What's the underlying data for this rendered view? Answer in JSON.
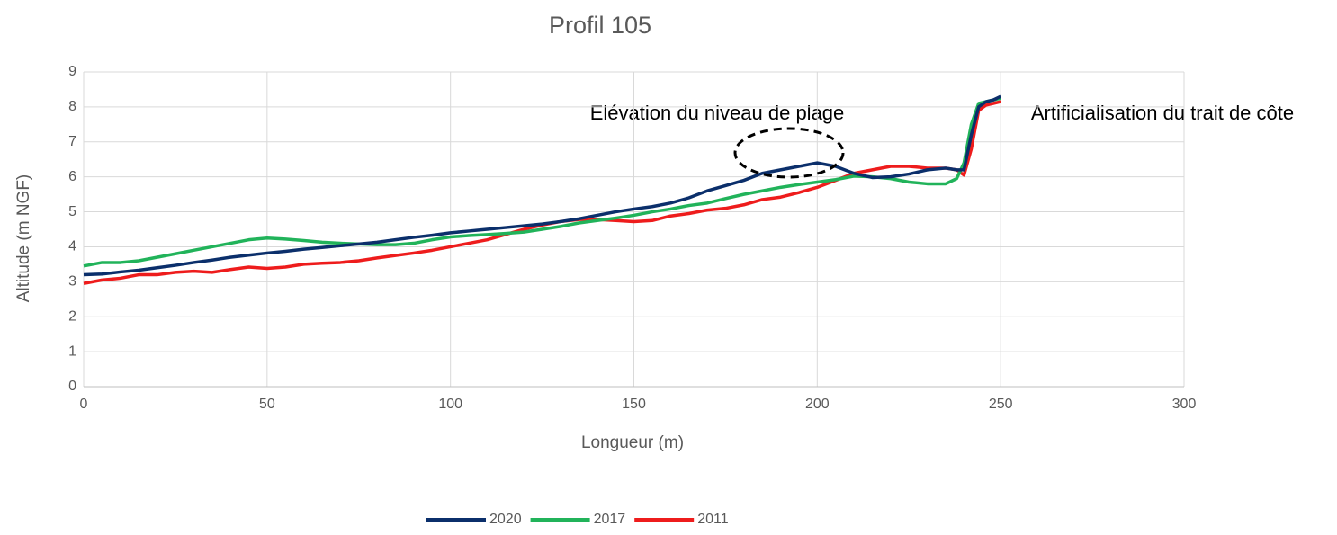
{
  "chart_data": {
    "type": "line",
    "title": "Profil 105",
    "xlabel": "Longueur (m)",
    "ylabel": "Altitude (m NGF)",
    "annotations": [
      "Elévation du niveau de plage",
      "Artificialisation du trait de côte"
    ],
    "x": [
      0,
      5,
      10,
      15,
      20,
      25,
      30,
      35,
      40,
      45,
      50,
      55,
      60,
      65,
      70,
      75,
      80,
      85,
      90,
      95,
      100,
      105,
      110,
      115,
      120,
      125,
      130,
      135,
      140,
      145,
      150,
      155,
      160,
      165,
      170,
      175,
      180,
      185,
      190,
      195,
      200,
      205,
      210,
      215,
      220,
      225,
      230,
      235,
      238,
      240,
      242,
      244,
      246,
      248,
      250
    ],
    "series": [
      {
        "name": "2020",
        "color": "#0b2f6b",
        "values": [
          3.2,
          3.22,
          3.28,
          3.33,
          3.4,
          3.47,
          3.55,
          3.62,
          3.7,
          3.76,
          3.82,
          3.87,
          3.93,
          3.98,
          4.03,
          4.08,
          4.13,
          4.2,
          4.27,
          4.33,
          4.4,
          4.45,
          4.5,
          4.55,
          4.6,
          4.65,
          4.72,
          4.8,
          4.9,
          5.0,
          5.08,
          5.15,
          5.25,
          5.4,
          5.6,
          5.75,
          5.9,
          6.1,
          6.2,
          6.3,
          6.4,
          6.3,
          6.1,
          5.98,
          6.0,
          6.08,
          6.2,
          6.25,
          6.2,
          6.2,
          7.2,
          8.0,
          8.15,
          8.2,
          8.3
        ]
      },
      {
        "name": "2017",
        "color": "#21b35a",
        "values": [
          3.45,
          3.55,
          3.55,
          3.6,
          3.7,
          3.8,
          3.9,
          4.0,
          4.1,
          4.2,
          4.25,
          4.22,
          4.18,
          4.13,
          4.1,
          4.08,
          4.06,
          4.06,
          4.1,
          4.2,
          4.28,
          4.32,
          4.35,
          4.38,
          4.42,
          4.5,
          4.58,
          4.68,
          4.75,
          4.82,
          4.9,
          5.0,
          5.08,
          5.18,
          5.25,
          5.38,
          5.5,
          5.6,
          5.7,
          5.78,
          5.85,
          5.92,
          6.02,
          6.0,
          5.95,
          5.85,
          5.8,
          5.8,
          5.95,
          6.4,
          7.5,
          8.1,
          8.15,
          8.2,
          8.25
        ]
      },
      {
        "name": "2011",
        "color": "#ee1c1c",
        "values": [
          2.95,
          3.05,
          3.1,
          3.2,
          3.2,
          3.27,
          3.3,
          3.27,
          3.35,
          3.42,
          3.38,
          3.42,
          3.5,
          3.53,
          3.55,
          3.6,
          3.68,
          3.75,
          3.82,
          3.9,
          4.0,
          4.1,
          4.2,
          4.35,
          4.5,
          4.62,
          4.72,
          4.78,
          4.78,
          4.75,
          4.72,
          4.75,
          4.88,
          4.95,
          5.05,
          5.1,
          5.2,
          5.35,
          5.42,
          5.55,
          5.7,
          5.9,
          6.1,
          6.2,
          6.3,
          6.3,
          6.25,
          6.25,
          6.2,
          6.05,
          6.8,
          7.9,
          8.05,
          8.1,
          8.15
        ]
      }
    ],
    "xlim": [
      0,
      300
    ],
    "xticks": [
      0,
      50,
      100,
      150,
      200,
      250,
      300
    ],
    "ylim": [
      0,
      9
    ],
    "yticks": [
      0,
      1,
      2,
      3,
      4,
      5,
      6,
      7,
      8,
      9
    ],
    "grid": true,
    "legend": "bottom"
  }
}
